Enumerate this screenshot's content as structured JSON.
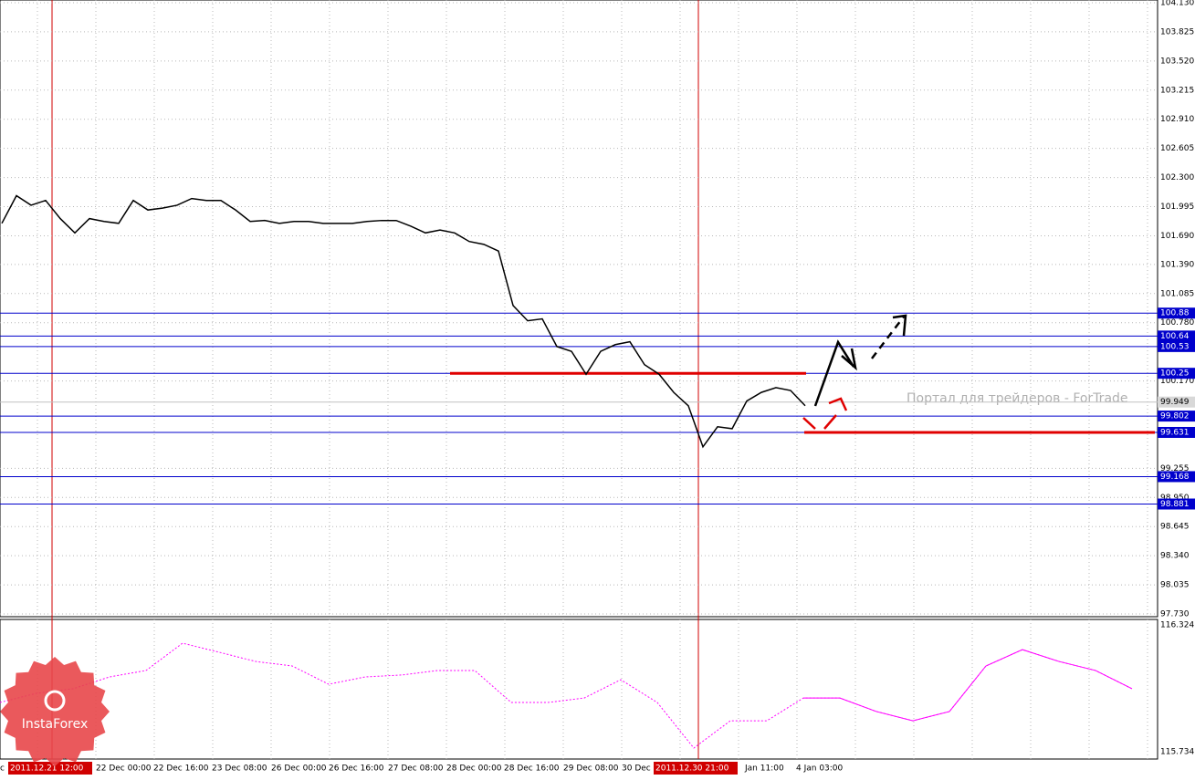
{
  "chart_data": [
    {
      "type": "line",
      "color": "#000000",
      "values": [
        101.82,
        102.11,
        102.01,
        102.06,
        101.87,
        101.72,
        101.87,
        101.84,
        101.82,
        102.06,
        101.96,
        101.98,
        102.01,
        102.08,
        102.06,
        102.06,
        101.96,
        101.84,
        101.85,
        101.82,
        101.84,
        101.84,
        101.82,
        101.82,
        101.82,
        101.84,
        101.85,
        101.85,
        101.79,
        101.72,
        101.75,
        101.72,
        101.63,
        101.6,
        101.53,
        100.96,
        100.8,
        100.82,
        100.53,
        100.48,
        100.24,
        100.48,
        100.55,
        100.58,
        100.34,
        100.24,
        100.05,
        99.91,
        99.48,
        99.69,
        99.67,
        99.96,
        100.05,
        100.1,
        100.07,
        99.91
      ],
      "ylim": [
        97.73,
        104.13
      ],
      "yticks": [
        {
          "value": 104.13,
          "label": "104.130"
        },
        {
          "value": 103.825,
          "label": "103.825"
        },
        {
          "value": 103.52,
          "label": "103.520"
        },
        {
          "value": 103.215,
          "label": "103.215"
        },
        {
          "value": 102.91,
          "label": "102.910"
        },
        {
          "value": 102.605,
          "label": "102.605"
        },
        {
          "value": 102.3,
          "label": "102.300"
        },
        {
          "value": 101.995,
          "label": "101.995"
        },
        {
          "value": 101.69,
          "label": "101.690"
        },
        {
          "value": 101.39,
          "label": "101.390"
        },
        {
          "value": 101.085,
          "label": "101.085"
        },
        {
          "value": 100.78,
          "label": "100.780"
        },
        {
          "value": 100.17,
          "label": "100.170"
        },
        {
          "value": 99.255,
          "label": "99.255"
        },
        {
          "value": 98.95,
          "label": "98.950"
        },
        {
          "value": 98.645,
          "label": "98.645"
        },
        {
          "value": 98.34,
          "label": "98.340"
        },
        {
          "value": 98.035,
          "label": "98.035"
        },
        {
          "value": 97.73,
          "label": "97.730"
        }
      ],
      "levels": [
        100.88,
        100.64,
        100.53,
        100.25,
        99.802,
        99.631,
        99.168,
        98.881
      ],
      "level_color": "#0000cc",
      "last": 99.949,
      "watermark": "Портал для трейдеров - ForTrade",
      "grid": true
    },
    {
      "type": "line",
      "color": "#ff00ff",
      "values": [
        115.963,
        116.006,
        116.027,
        116.082,
        116.112,
        116.239,
        116.197,
        116.154,
        116.133,
        116.048,
        116.082,
        116.091,
        116.112,
        116.112,
        115.963,
        115.963,
        115.984,
        116.069,
        115.963,
        115.751,
        115.878,
        115.878,
        115.984,
        115.984,
        115.921,
        115.878,
        115.921,
        116.133,
        116.209,
        116.154,
        116.112,
        116.027
      ],
      "ylim": [
        115.734,
        116.324
      ],
      "yticks": [
        116.324,
        115.734
      ],
      "xlabels": [
        "c",
        "2011.12.21 12:00",
        "22 Dec 00:00",
        "22 Dec 16:00",
        "23 Dec 08:00",
        "26 Dec 00:00",
        "26 Dec 16:00",
        "27 Dec 08:00",
        "28 Dec 00:00",
        "28 Dec 16:00",
        "29 Dec 08:00",
        "30 Dec 0",
        "2011.12.30 21:00",
        "Jan 11:00",
        "4 Jan 03:00"
      ],
      "logo": "InstaForex"
    }
  ]
}
